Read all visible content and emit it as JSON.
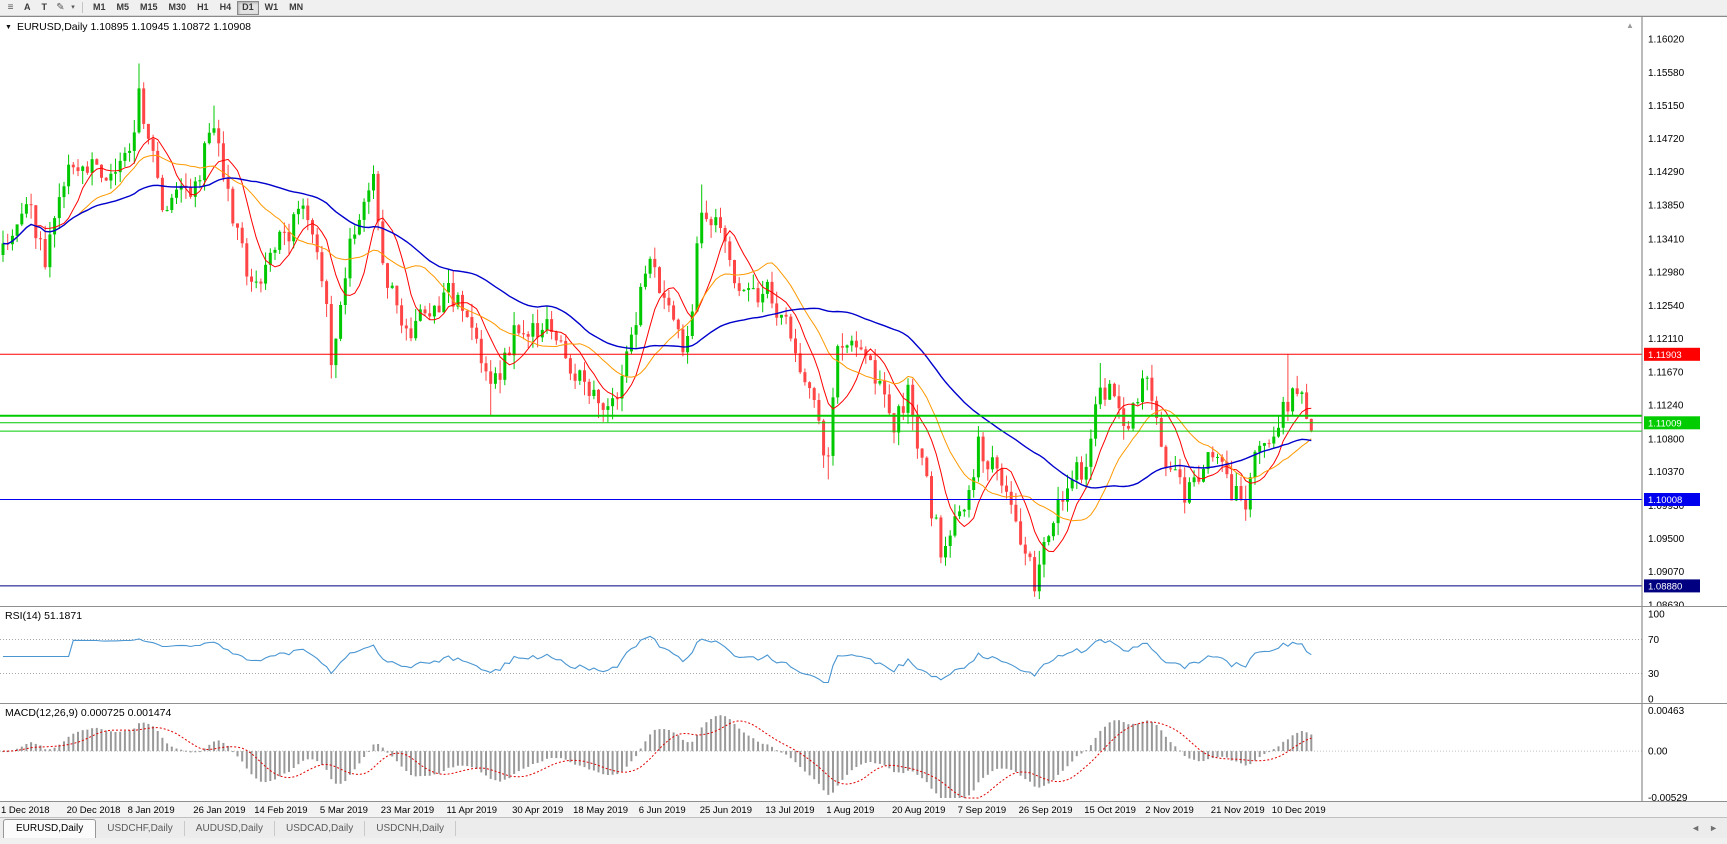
{
  "toolbar": {
    "buttons": [
      "A",
      "T"
    ],
    "timeframes": [
      "M1",
      "M5",
      "M15",
      "M30",
      "H1",
      "H4",
      "D1",
      "W1",
      "MN"
    ],
    "active_timeframe": "D1"
  },
  "chart": {
    "header": "EURUSD,Daily 1.10895 1.10945 1.10872 1.10908",
    "collapse_glyph": "▼",
    "scroll_marker": "▲"
  },
  "price_scale": {
    "labels": [
      "1.16020",
      "1.15580",
      "1.15150",
      "1.14720",
      "1.14290",
      "1.13850",
      "1.13410",
      "1.12980",
      "1.12540",
      "1.12110",
      "1.11670",
      "1.11240",
      "1.10800",
      "1.10370",
      "1.09930",
      "1.09500",
      "1.09070",
      "1.08630"
    ]
  },
  "time_axis": {
    "labels": [
      "1 Dec 2018",
      "20 Dec 2018",
      "8 Jan 2019",
      "26 Jan 2019",
      "14 Feb 2019",
      "5 Mar 2019",
      "23 Mar 2019",
      "11 Apr 2019",
      "30 Apr 2019",
      "18 May 2019",
      "6 Jun 2019",
      "25 Jun 2019",
      "13 Jul 2019",
      "1 Aug 2019",
      "20 Aug 2019",
      "7 Sep 2019",
      "26 Sep 2019",
      "15 Oct 2019",
      "2 Nov 2019",
      "21 Nov 2019",
      "10 Dec 2019"
    ],
    "bar_index": [
      0,
      14,
      27,
      41,
      54,
      68,
      81,
      95,
      109,
      122,
      136,
      149,
      163,
      176,
      190,
      204,
      217,
      231,
      244,
      258,
      271
    ]
  },
  "indicators": {
    "rsi": {
      "label": "RSI(14) 51.1871",
      "period": 14,
      "value": 51.1871,
      "color": "#4a96d2",
      "levels": [
        70,
        30
      ],
      "scale_labels": [
        "100",
        "70",
        "30",
        "0"
      ]
    },
    "macd": {
      "label": "MACD(12,26,9) 0.000725 0.001474",
      "fast": 12,
      "slow": 26,
      "signal_period": 9,
      "value_main": 0.000725,
      "value_signal": 0.001474,
      "hist_color": "#999999",
      "signal_color": "#e00000",
      "scale_labels": [
        "0.00463",
        "0.00",
        "-0.00529"
      ],
      "scale_values": [
        0.00463,
        0,
        -0.00529
      ]
    }
  },
  "levels": [
    {
      "price": 1.11903,
      "label": "1.11903",
      "color": "#ff0000",
      "width": 1,
      "tag": true
    },
    {
      "price": 1.111,
      "label": "",
      "color": "#00cc00",
      "width": 2,
      "tag": false
    },
    {
      "price": 1.11009,
      "label": "1.11009",
      "color": "#00cc00",
      "width": 1,
      "tag": true
    },
    {
      "price": 1.109,
      "label": "",
      "color": "#00cc00",
      "width": 1,
      "tag": false
    },
    {
      "price": 1.10008,
      "label": "1.10008",
      "color": "#0000ee",
      "width": 1,
      "tag": true
    },
    {
      "price": 1.0888,
      "label": "1.08880",
      "color": "#000080",
      "width": 1,
      "tag": true
    }
  ],
  "tabs": [
    {
      "label": "EURUSD,Daily",
      "active": true
    },
    {
      "label": "USDCHF,Daily",
      "active": false
    },
    {
      "label": "AUDUSD,Daily",
      "active": false
    },
    {
      "label": "USDCAD,Daily",
      "active": false
    },
    {
      "label": "USDCNH,Daily",
      "active": false
    }
  ],
  "tab_nav": {
    "left": "◄",
    "right": "►"
  },
  "colors": {
    "bull": "#00c800",
    "bear": "#ff4545",
    "bg": "#ffffff",
    "axis_text": "#000000",
    "divider": "#777777"
  },
  "chart_data": {
    "type": "candlestick",
    "symbol": "EURUSD",
    "timeframe": "Daily",
    "ohlc": {
      "o": 1.10895,
      "h": 1.10945,
      "l": 1.10872,
      "c": 1.10908
    },
    "bar_count": 280,
    "price_axis": {
      "top": 1.1602,
      "bottom": 1.0863
    },
    "price_path": [
      [
        0,
        1.1335
      ],
      [
        5,
        1.14
      ],
      [
        9,
        1.131
      ],
      [
        14,
        1.144
      ],
      [
        20,
        1.143
      ],
      [
        27,
        1.144
      ],
      [
        29,
        1.153
      ],
      [
        34,
        1.139
      ],
      [
        41,
        1.141
      ],
      [
        45,
        1.15
      ],
      [
        50,
        1.134
      ],
      [
        54,
        1.127
      ],
      [
        58,
        1.133
      ],
      [
        64,
        1.1375
      ],
      [
        68,
        1.13
      ],
      [
        70,
        1.119
      ],
      [
        74,
        1.133
      ],
      [
        79,
        1.142
      ],
      [
        81,
        1.13
      ],
      [
        86,
        1.122
      ],
      [
        95,
        1.127
      ],
      [
        100,
        1.123
      ],
      [
        104,
        1.114
      ],
      [
        109,
        1.1215
      ],
      [
        117,
        1.123
      ],
      [
        122,
        1.116
      ],
      [
        127,
        1.113
      ],
      [
        131,
        1.114
      ],
      [
        136,
        1.127
      ],
      [
        138,
        1.133
      ],
      [
        143,
        1.122
      ],
      [
        146,
        1.12
      ],
      [
        149,
        1.138
      ],
      [
        152,
        1.137
      ],
      [
        156,
        1.128
      ],
      [
        163,
        1.127
      ],
      [
        168,
        1.122
      ],
      [
        172,
        1.114
      ],
      [
        176,
        1.1045
      ],
      [
        178,
        1.12
      ],
      [
        181,
        1.12
      ],
      [
        185,
        1.117
      ],
      [
        190,
        1.11
      ],
      [
        193,
        1.114
      ],
      [
        198,
        1.099
      ],
      [
        200,
        1.094
      ],
      [
        206,
        1.101
      ],
      [
        208,
        1.107
      ],
      [
        212,
        1.104
      ],
      [
        217,
        1.094
      ],
      [
        220,
        1.0895
      ],
      [
        224,
        1.097
      ],
      [
        228,
        1.104
      ],
      [
        231,
        1.103
      ],
      [
        234,
        1.115
      ],
      [
        237,
        1.113
      ],
      [
        240,
        1.11
      ],
      [
        244,
        1.1165
      ],
      [
        248,
        1.105
      ],
      [
        252,
        1.101
      ],
      [
        258,
        1.106
      ],
      [
        262,
        1.101
      ],
      [
        265,
        1.1
      ],
      [
        268,
        1.108
      ],
      [
        271,
        1.109
      ],
      [
        274,
        1.113
      ],
      [
        276,
        1.1145
      ],
      [
        279,
        1.10908
      ]
    ],
    "extremes": [
      {
        "i": 29,
        "h": 1.157
      },
      {
        "i": 45,
        "h": 1.1515
      },
      {
        "i": 70,
        "l": 1.1177
      },
      {
        "i": 104,
        "l": 1.111
      },
      {
        "i": 127,
        "l": 1.1107
      },
      {
        "i": 149,
        "h": 1.1412
      },
      {
        "i": 176,
        "l": 1.1027
      },
      {
        "i": 200,
        "l": 1.0926
      },
      {
        "i": 220,
        "l": 1.0879
      },
      {
        "i": 234,
        "h": 1.1179
      },
      {
        "i": 265,
        "l": 1.0981
      },
      {
        "i": 274,
        "h": 1.119
      }
    ],
    "moving_averages": [
      {
        "period": 8,
        "color": "#ff0000"
      },
      {
        "period": 17,
        "color": "#ff9900"
      },
      {
        "period": 45,
        "color": "#0000cc"
      }
    ],
    "horizontal_levels": [
      1.11903,
      1.111,
      1.11009,
      1.109,
      1.10008,
      1.0888
    ]
  }
}
